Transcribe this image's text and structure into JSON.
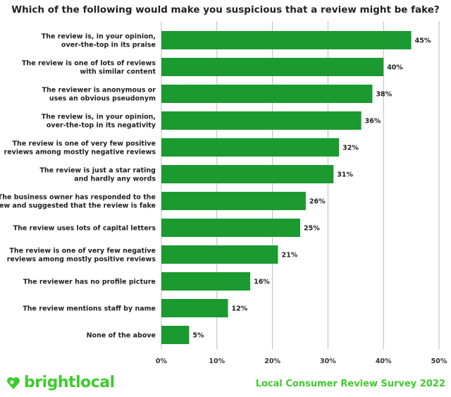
{
  "chart_data": {
    "type": "bar",
    "orientation": "horizontal",
    "title": "Which of the following would make you suspicious that a review might be fake?",
    "categories": [
      "The review is, in your opinion,\nover-the-top in its praise",
      "The review is one of lots of reviews\nwith similar content",
      "The reviewer is anonymous or\nuses an obvious pseudonym",
      "The review is, in your opinion,\nover-the-top in its negativity",
      "The review is one of very few positive\nreviews among mostly negative reviews",
      "The review is just a star rating\nand hardly any words",
      "The business owner has responded to the\nreview and suggested that the review is fake",
      "The review uses lots of capital letters",
      "The review is one of very few negative\nreviews among mostly positive reviews",
      "The reviewer has no profile picture",
      "The review mentions staff by name",
      "None of the above"
    ],
    "values": [
      45,
      40,
      38,
      36,
      32,
      31,
      26,
      25,
      21,
      16,
      12,
      5
    ],
    "value_labels": [
      "45%",
      "40%",
      "38%",
      "36%",
      "32%",
      "31%",
      "26%",
      "25%",
      "21%",
      "16%",
      "12%",
      "5%"
    ],
    "xlim": [
      0,
      50
    ],
    "xticks": [
      "0%",
      "10%",
      "20%",
      "30%",
      "40%",
      "50%"
    ],
    "grid": true,
    "bar_color": "#1a9a2f"
  },
  "footer": {
    "brand": "brightlocal",
    "survey": "Local Consumer Review Survey 2022",
    "brand_color": "#3dcc2b"
  }
}
